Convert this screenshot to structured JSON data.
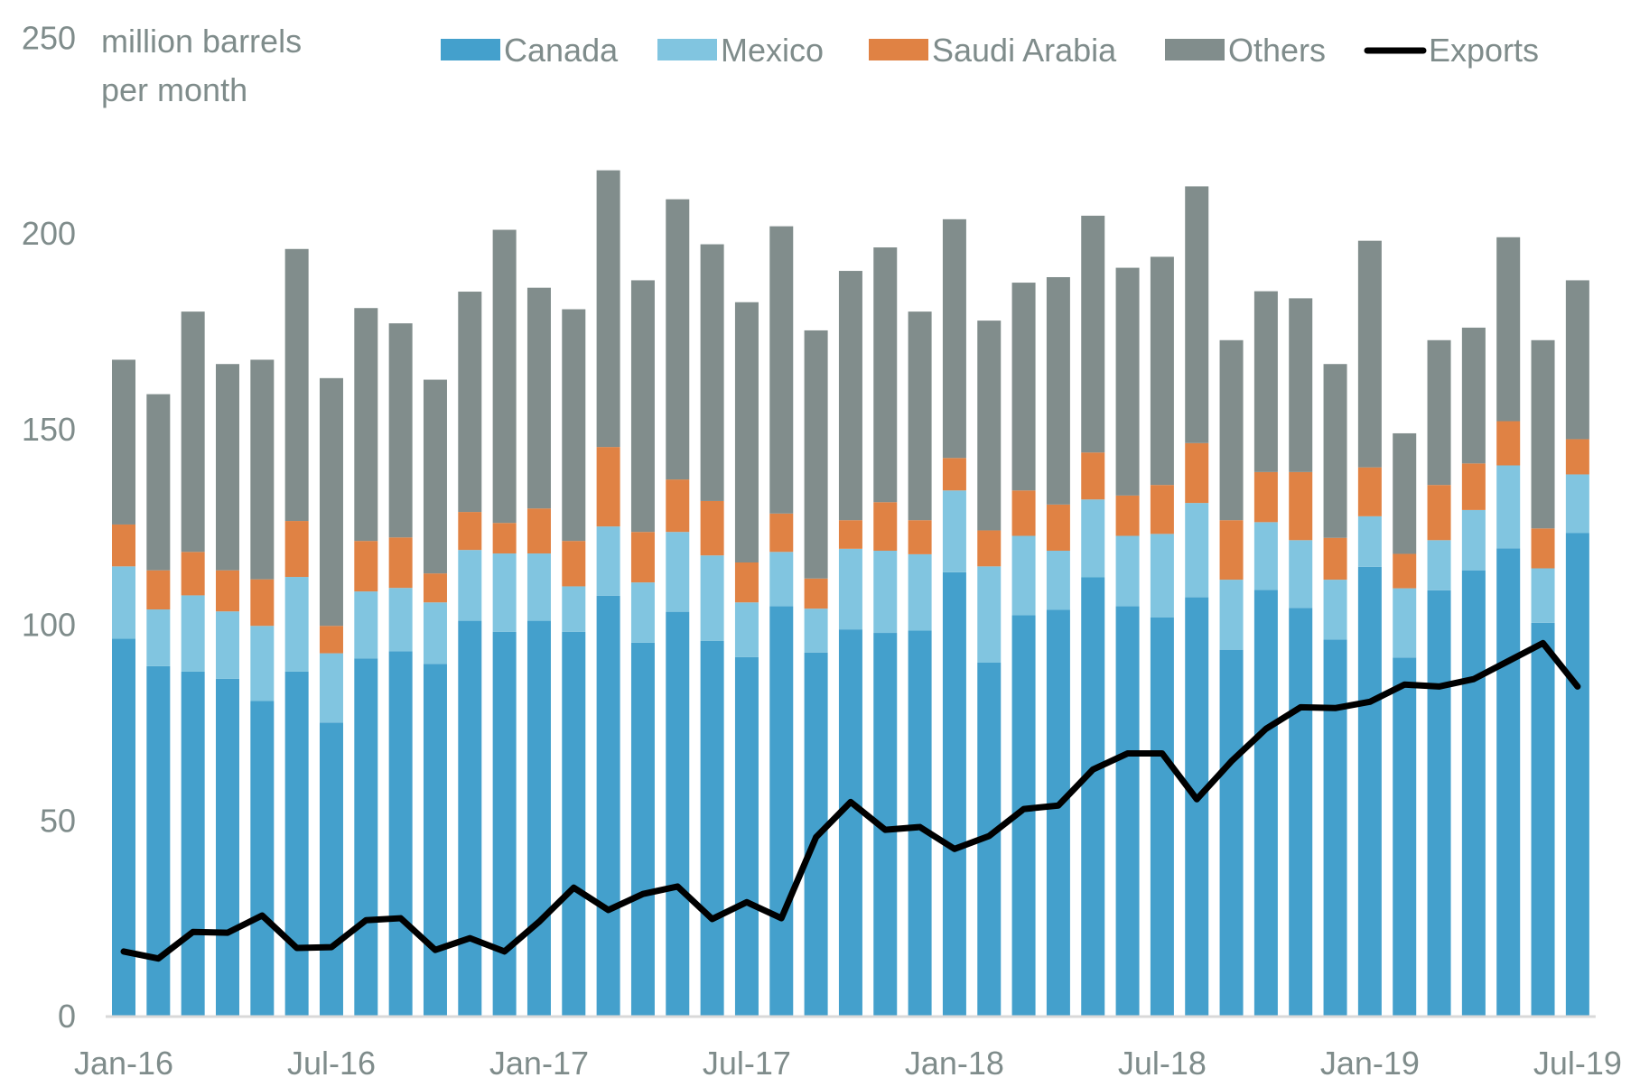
{
  "chart_data": {
    "type": "bar",
    "subtype": "stacked-bar-with-line",
    "title": "",
    "ylabel": "million barrels per month",
    "ylabel_lines": [
      "million barrels",
      "per month"
    ],
    "xlabel": "",
    "ylim": [
      0,
      250
    ],
    "yticks": [
      0,
      50,
      100,
      150,
      200,
      250
    ],
    "grid": false,
    "legend_position": "top",
    "categories": [
      "Jan-16",
      "Feb-16",
      "Mar-16",
      "Apr-16",
      "May-16",
      "Jun-16",
      "Jul-16",
      "Aug-16",
      "Sep-16",
      "Oct-16",
      "Nov-16",
      "Dec-16",
      "Jan-17",
      "Feb-17",
      "Mar-17",
      "Apr-17",
      "May-17",
      "Jun-17",
      "Jul-17",
      "Aug-17",
      "Sep-17",
      "Oct-17",
      "Nov-17",
      "Dec-17",
      "Jan-18",
      "Feb-18",
      "Mar-18",
      "Apr-18",
      "May-18",
      "Jun-18",
      "Jul-18",
      "Aug-18",
      "Sep-18",
      "Oct-18",
      "Nov-18",
      "Dec-18",
      "Jan-19",
      "Feb-19",
      "Mar-19",
      "Apr-19",
      "May-19",
      "Jun-19",
      "Jul-19"
    ],
    "xtick_labels": [
      "Jan-16",
      "Jul-16",
      "Jan-17",
      "Jul-17",
      "Jan-18",
      "Jul-18",
      "Jan-19",
      "Jul-19"
    ],
    "series": [
      {
        "name": "Canada",
        "type": "bar",
        "color": "#44a0cc",
        "values": [
          96.3,
          89.3,
          87.9,
          86.1,
          80.4,
          87.9,
          74.9,
          91.3,
          93.1,
          89.9,
          100.9,
          98.1,
          100.9,
          98.1,
          107.3,
          95.3,
          103.2,
          95.8,
          91.6,
          104.6,
          92.8,
          98.7,
          97.8,
          98.4,
          113.3,
          90.2,
          102.3,
          103.7,
          112.0,
          104.6,
          101.8,
          106.9,
          93.5,
          108.8,
          104.2,
          96.1,
          114.7,
          91.5,
          108.7,
          113.8,
          119.4,
          100.4,
          123.3
        ]
      },
      {
        "name": "Mexico",
        "type": "bar",
        "color": "#81c5e0",
        "values": [
          18.5,
          14.5,
          19.5,
          17.2,
          19.2,
          24.2,
          17.7,
          17.1,
          16.2,
          15.7,
          18.1,
          20.0,
          17.2,
          11.6,
          17.7,
          15.4,
          20.4,
          21.8,
          14.0,
          13.9,
          11.2,
          20.6,
          21.0,
          19.5,
          20.9,
          24.6,
          20.3,
          15.1,
          19.9,
          18.0,
          21.3,
          24.1,
          17.9,
          17.3,
          17.3,
          15.3,
          12.9,
          17.7,
          12.8,
          15.4,
          21.2,
          13.9,
          15.0
        ]
      },
      {
        "name": "Saudi Arabia",
        "type": "bar",
        "color": "#e08244",
        "values": [
          10.7,
          10.0,
          11.1,
          10.5,
          11.9,
          14.3,
          7.0,
          12.9,
          12.9,
          7.4,
          9.7,
          7.8,
          11.5,
          11.6,
          20.3,
          12.9,
          13.4,
          13.9,
          10.2,
          9.8,
          7.7,
          7.3,
          12.4,
          8.7,
          8.3,
          9.2,
          11.6,
          11.8,
          12.0,
          10.3,
          12.5,
          15.3,
          15.2,
          12.8,
          17.4,
          10.7,
          12.5,
          8.8,
          14.1,
          11.9,
          11.3,
          10.2,
          9.0
        ]
      },
      {
        "name": "Others",
        "type": "bar",
        "color": "#818d8c",
        "values": [
          42.1,
          45.0,
          61.4,
          52.7,
          56.1,
          69.5,
          63.3,
          59.5,
          54.7,
          49.5,
          56.3,
          74.9,
          56.4,
          59.2,
          70.7,
          64.3,
          71.6,
          65.6,
          66.5,
          73.4,
          63.4,
          63.7,
          65.1,
          53.3,
          61.0,
          53.6,
          53.1,
          58.1,
          60.5,
          58.2,
          58.3,
          65.6,
          46.0,
          46.2,
          44.4,
          44.4,
          57.9,
          30.8,
          37.0,
          34.7,
          47.0,
          48.1,
          40.6
        ]
      },
      {
        "name": "Exports",
        "type": "line",
        "color": "#000000",
        "values": [
          16.4,
          14.6,
          21.4,
          21.2,
          25.6,
          17.3,
          17.5,
          24.4,
          24.9,
          16.8,
          19.8,
          16.4,
          24.0,
          32.7,
          27.0,
          31.1,
          33.0,
          24.7,
          29.0,
          24.9,
          45.6,
          54.6,
          47.5,
          48.2,
          42.6,
          45.9,
          52.8,
          53.7,
          62.9,
          67.0,
          67.0,
          55.3,
          65.0,
          73.3,
          78.8,
          78.6,
          80.2,
          84.6,
          84.1,
          86.0,
          90.6,
          95.2,
          84.1
        ]
      }
    ]
  }
}
